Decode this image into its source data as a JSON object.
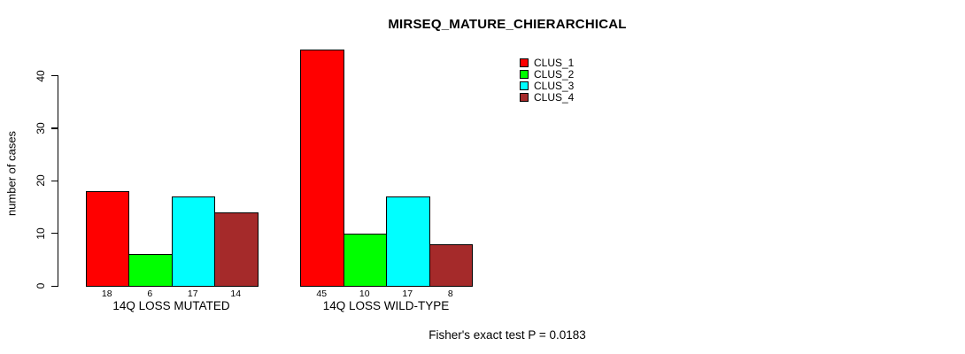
{
  "chart_data": {
    "type": "bar",
    "title": "MIRSEQ_MATURE_CHIERARCHICAL",
    "ylabel": "number of cases",
    "xlabel": "",
    "categories": [
      "14Q LOSS MUTATED",
      "14Q LOSS WILD-TYPE"
    ],
    "series": [
      {
        "name": "CLUS_1",
        "color": "#FF0000",
        "values": [
          18,
          45
        ]
      },
      {
        "name": "CLUS_2",
        "color": "#00FF00",
        "values": [
          6,
          10
        ]
      },
      {
        "name": "CLUS_3",
        "color": "#00FFFF",
        "values": [
          17,
          17
        ]
      },
      {
        "name": "CLUS_4",
        "color": "#A52A2A",
        "values": [
          14,
          8
        ]
      }
    ],
    "yticks": [
      0,
      10,
      20,
      30,
      40
    ],
    "ylim": [
      0,
      47
    ],
    "grid": false,
    "legend_position": "inside-top-right",
    "annotation": "Fisher's exact test P = 0.0183"
  }
}
